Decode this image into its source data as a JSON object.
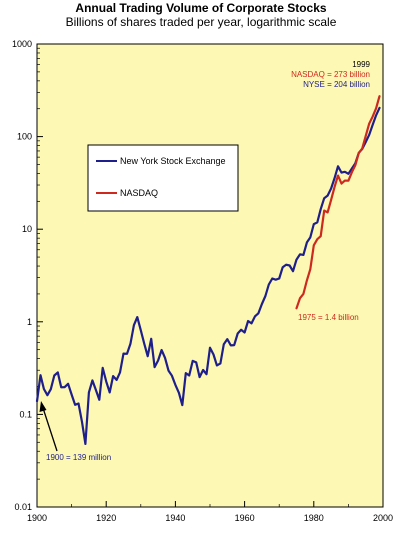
{
  "chart_data": {
    "type": "line",
    "title": "Annual Trading Volume of Corporate Stocks",
    "subtitle": "Billions of shares traded per year, logarithmic scale",
    "x_scale": "linear",
    "y_scale": "log",
    "xlim": [
      1900,
      2000
    ],
    "ylim": [
      0.01,
      1000
    ],
    "grid": false,
    "background_color": "#fdf8b4",
    "x_ticks": [
      "1900",
      "1920",
      "1940",
      "1960",
      "1980",
      "2000"
    ],
    "y_ticks": [
      "0.01",
      "0.1",
      "1",
      "10",
      "100",
      "1000"
    ],
    "legend_position": "upper-left inside plot",
    "series": [
      {
        "name": "New York Stock Exchange",
        "color": "#1f1f8c",
        "x": [
          1900,
          1901,
          1902,
          1903,
          1904,
          1905,
          1906,
          1907,
          1908,
          1909,
          1910,
          1911,
          1912,
          1913,
          1914,
          1915,
          1916,
          1917,
          1918,
          1919,
          1920,
          1921,
          1922,
          1923,
          1924,
          1925,
          1926,
          1927,
          1928,
          1929,
          1930,
          1931,
          1932,
          1933,
          1934,
          1935,
          1936,
          1937,
          1938,
          1939,
          1940,
          1941,
          1942,
          1943,
          1944,
          1945,
          1946,
          1947,
          1948,
          1949,
          1950,
          1951,
          1952,
          1953,
          1954,
          1955,
          1956,
          1957,
          1958,
          1959,
          1960,
          1961,
          1962,
          1963,
          1964,
          1965,
          1966,
          1967,
          1968,
          1969,
          1970,
          1971,
          1972,
          1973,
          1974,
          1975,
          1976,
          1977,
          1978,
          1979,
          1980,
          1981,
          1982,
          1983,
          1984,
          1985,
          1986,
          1987,
          1988,
          1989,
          1990,
          1991,
          1992,
          1993,
          1994,
          1995,
          1996,
          1997,
          1998,
          1999
        ],
        "values": [
          0.139,
          0.265,
          0.188,
          0.161,
          0.187,
          0.263,
          0.284,
          0.196,
          0.197,
          0.214,
          0.164,
          0.127,
          0.131,
          0.083,
          0.048,
          0.173,
          0.233,
          0.185,
          0.144,
          0.318,
          0.227,
          0.173,
          0.259,
          0.236,
          0.284,
          0.454,
          0.451,
          0.577,
          0.92,
          1.125,
          0.81,
          0.577,
          0.425,
          0.655,
          0.324,
          0.382,
          0.496,
          0.409,
          0.297,
          0.262,
          0.208,
          0.171,
          0.126,
          0.279,
          0.263,
          0.378,
          0.364,
          0.253,
          0.302,
          0.272,
          0.525,
          0.443,
          0.338,
          0.355,
          0.573,
          0.65,
          0.556,
          0.56,
          0.747,
          0.82,
          0.767,
          1.021,
          0.962,
          1.146,
          1.236,
          1.556,
          1.899,
          2.53,
          2.932,
          2.85,
          2.937,
          3.891,
          4.138,
          4.053,
          3.517,
          4.693,
          5.36,
          5.274,
          7.205,
          8.155,
          11.352,
          11.854,
          16.458,
          21.59,
          23.071,
          27.511,
          35.68,
          47.801,
          40.85,
          41.699,
          39.665,
          45.266,
          51.376,
          66.923,
          73.42,
          87.218,
          104.636,
          133.312,
          169.745,
          203.914
        ]
      },
      {
        "name": "NASDAQ",
        "color": "#cc2a1e",
        "x": [
          1975,
          1976,
          1977,
          1978,
          1979,
          1980,
          1981,
          1982,
          1983,
          1984,
          1985,
          1986,
          1987,
          1988,
          1989,
          1990,
          1991,
          1992,
          1993,
          1994,
          1995,
          1996,
          1997,
          1998,
          1999
        ],
        "values": [
          1.4,
          1.8,
          2.0,
          2.8,
          3.7,
          6.7,
          7.8,
          8.4,
          15.9,
          15.2,
          20.7,
          28.7,
          37.9,
          31.1,
          33.5,
          33.4,
          41.3,
          49.0,
          66.5,
          74.4,
          101.2,
          138.1,
          163.9,
          202.0,
          273.0
        ]
      }
    ],
    "annotations": [
      {
        "text": "1999",
        "color": "#000000"
      },
      {
        "text": "NASDAQ = 273 billion",
        "color": "#cc2a1e"
      },
      {
        "text": "NYSE = 204 billion",
        "color": "#1f1f8c"
      },
      {
        "text": "1975 = 1.4 billion",
        "color": "#cc2a1e"
      },
      {
        "text": "1900 = 139 million",
        "color": "#1f1f8c"
      }
    ]
  }
}
